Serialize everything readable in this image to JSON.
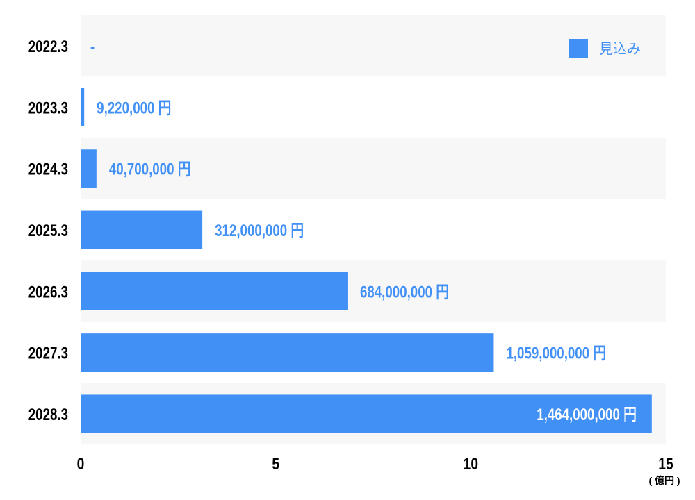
{
  "chart_data": {
    "type": "bar",
    "orientation": "horizontal",
    "categories": [
      "2022.3",
      "2023.3",
      "2024.3",
      "2025.3",
      "2026.3",
      "2027.3",
      "2028.3"
    ],
    "values": [
      null,
      0.0922,
      0.407,
      3.12,
      6.84,
      10.59,
      14.64
    ],
    "value_labels": [
      "-",
      "9,220,000 円",
      "40,700,000 円",
      "312,000,000 円",
      "684,000,000 円",
      "1,059,000,000 円",
      "1,464,000,000 円"
    ],
    "xlim": [
      0,
      15
    ],
    "xticks": [
      "0",
      "5",
      "10",
      "15"
    ],
    "xtick_values": [
      0,
      5,
      10,
      15
    ],
    "unit_label": "( 億円 )",
    "legend": {
      "entries": [
        "見込み"
      ],
      "placement": "top-right"
    },
    "colors": {
      "bar": "#4190f5",
      "label": "#4190f5",
      "band": "#f7f7f7"
    }
  }
}
